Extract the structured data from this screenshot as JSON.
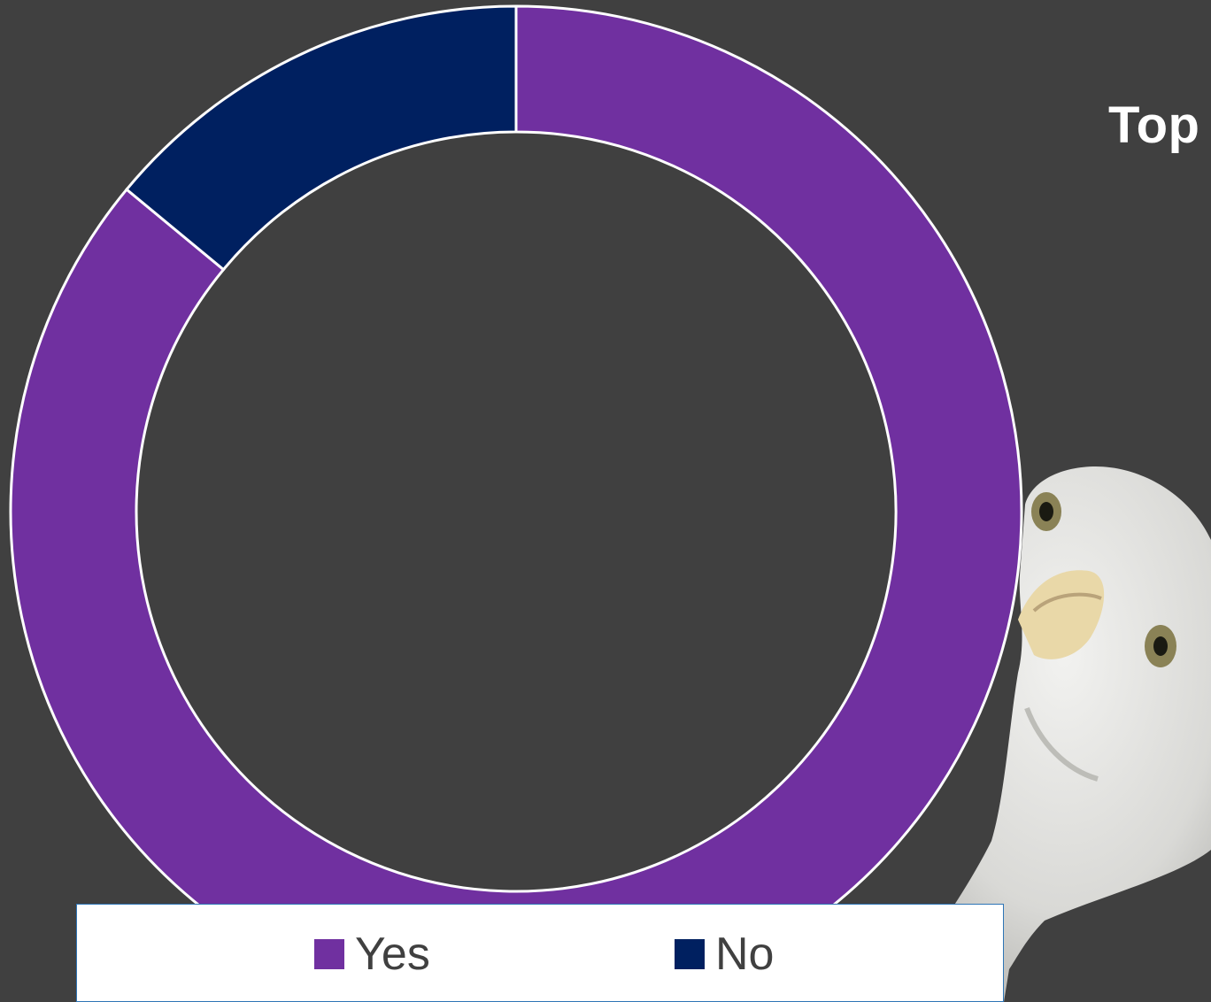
{
  "slide": {
    "title_partial": "Top",
    "background_color": "#404040"
  },
  "chart_data": {
    "type": "pie",
    "variant": "doughnut",
    "categories": [
      "Yes",
      "No"
    ],
    "values": [
      86,
      14
    ],
    "colors": [
      "#7030a0",
      "#002060"
    ],
    "legend_placement": "bottom",
    "legend": [
      "Yes",
      "No"
    ]
  },
  "image": {
    "icon": "peeking-bird-icon",
    "description_visible": false
  }
}
